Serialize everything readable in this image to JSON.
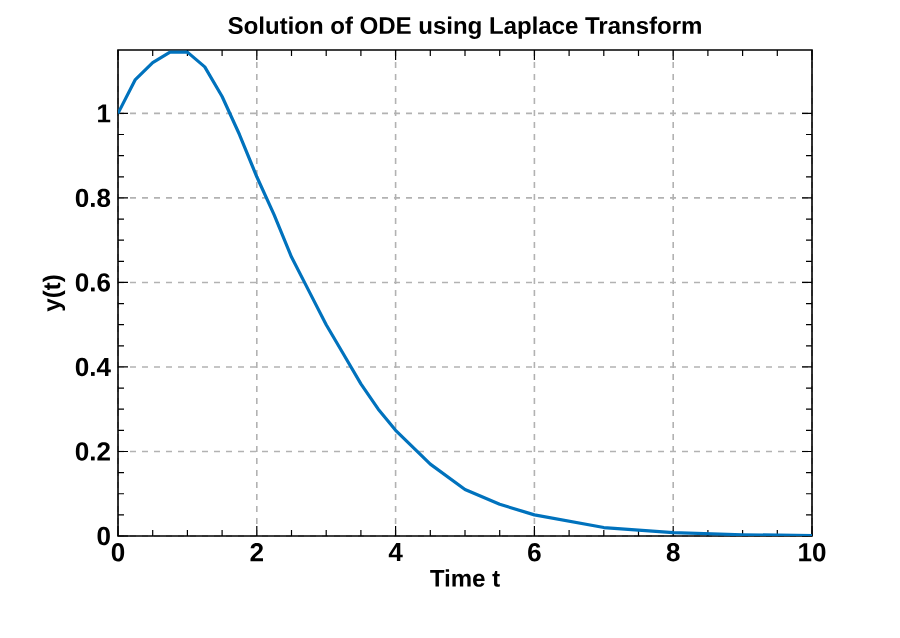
{
  "chart_data": {
    "type": "line",
    "title": "Solution of ODE using Laplace Transform",
    "xlabel": "Time t",
    "ylabel": "y(t)",
    "x": [
      0,
      0.25,
      0.5,
      0.75,
      1,
      1.25,
      1.5,
      1.75,
      2,
      2.25,
      2.5,
      2.75,
      3,
      3.25,
      3.5,
      3.75,
      4,
      4.5,
      5,
      5.5,
      6,
      7,
      8,
      9,
      10
    ],
    "values": [
      1,
      1.08,
      1.12,
      1.145,
      1.145,
      1.11,
      1.04,
      0.95,
      0.85,
      0.76,
      0.66,
      0.58,
      0.5,
      0.43,
      0.36,
      0.3,
      0.25,
      0.17,
      0.11,
      0.075,
      0.05,
      0.02,
      0.008,
      0.003,
      0.001
    ],
    "color": "#0072bd",
    "xlim": [
      0,
      10
    ],
    "ylim": [
      0,
      1.15
    ],
    "xticks": [
      0,
      2,
      4,
      6,
      8,
      10
    ],
    "yticks": [
      0,
      0.2,
      0.4,
      0.6,
      0.8,
      1
    ],
    "grid": true
  }
}
